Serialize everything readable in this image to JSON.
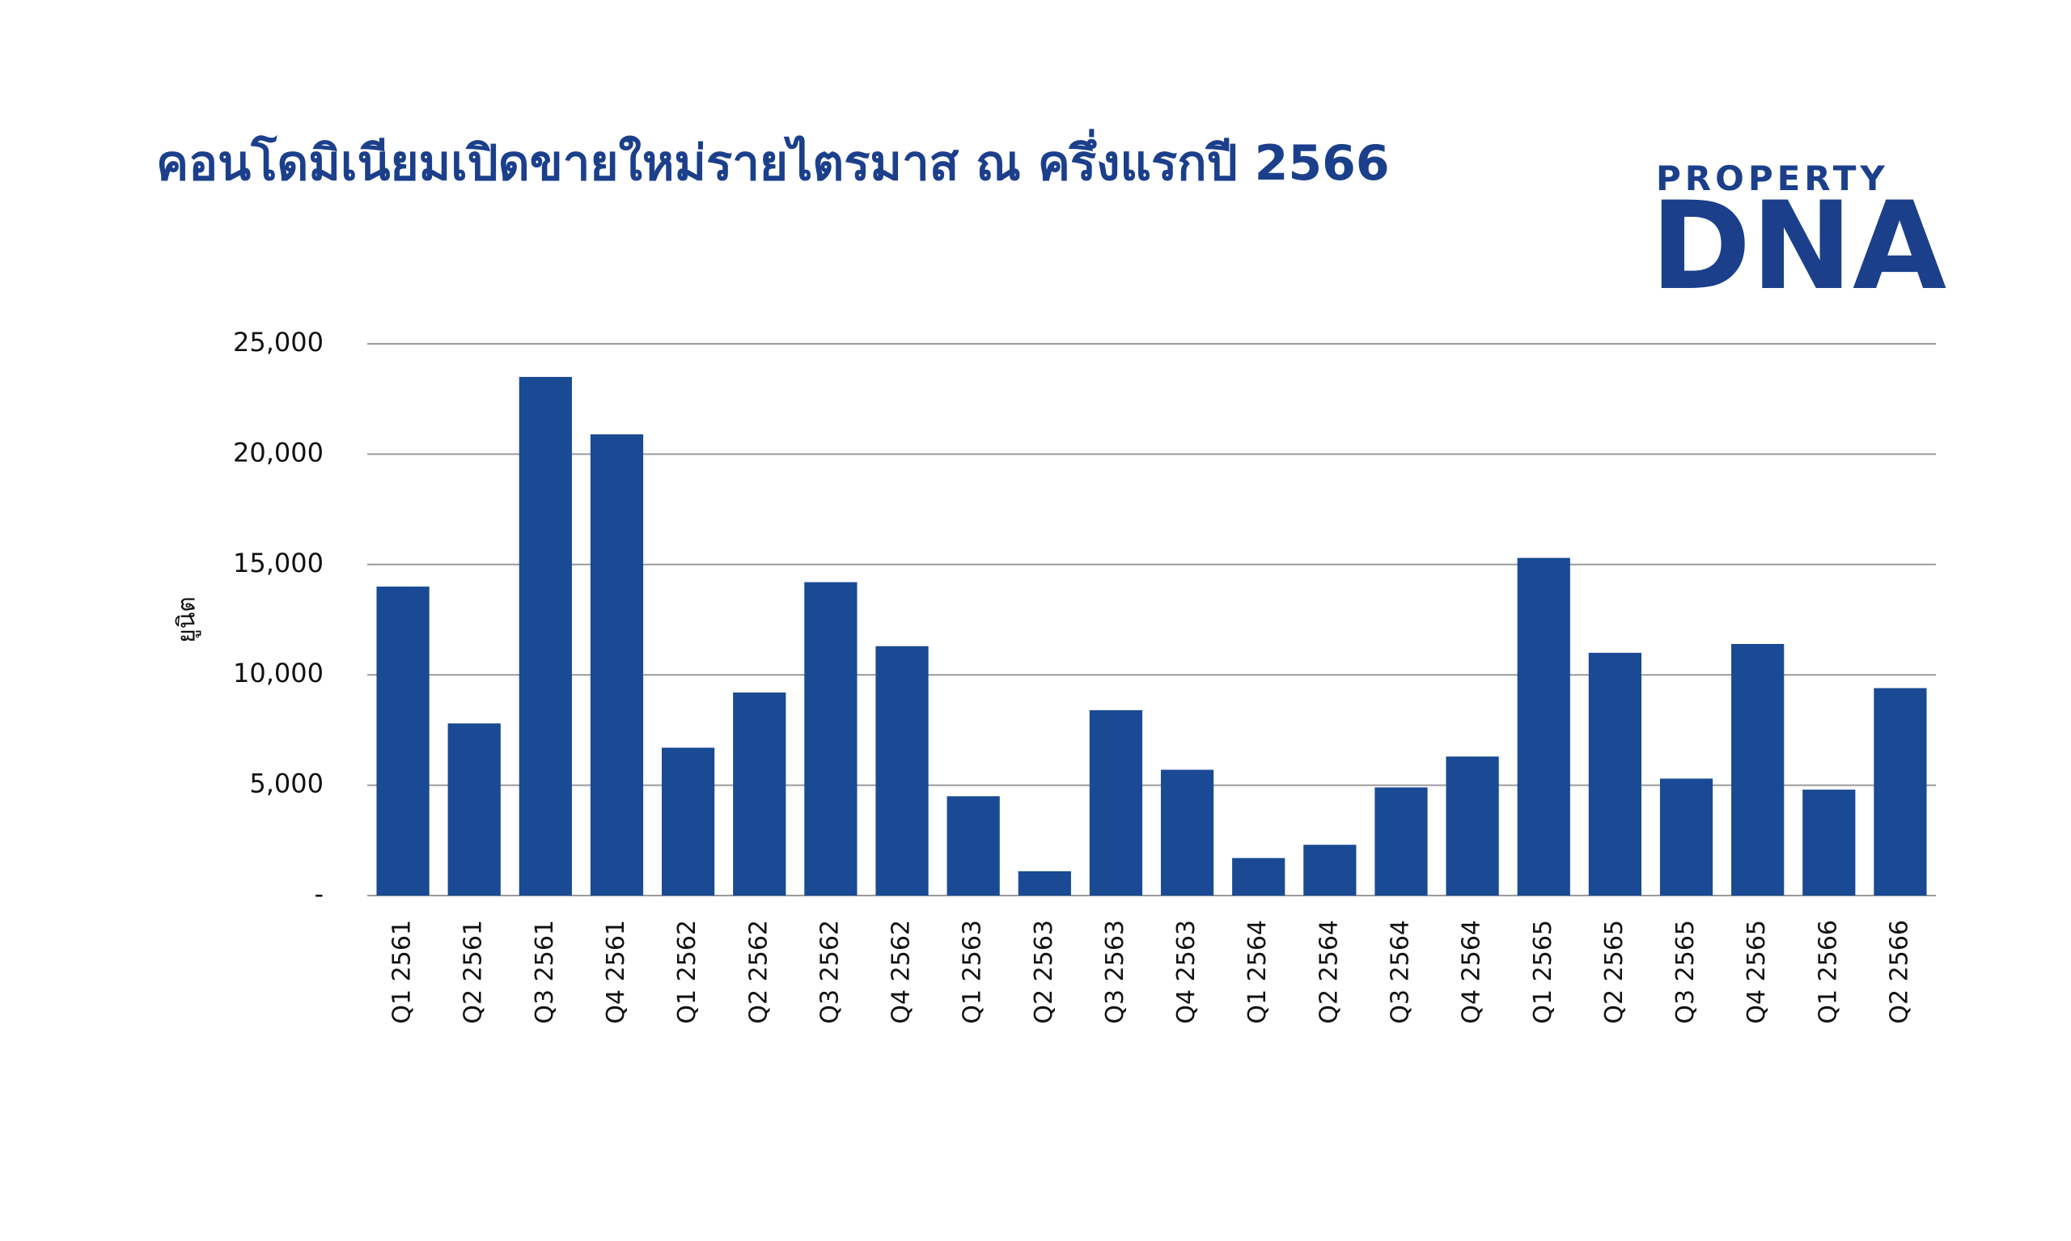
{
  "chart_data": {
    "type": "bar",
    "title": "คอนโดมิเนียมเปิดขายใหม่รายไตรมาส ณ ครึ่งแรกปี 2566",
    "y_label": "ยูนิต",
    "logo": {
      "top": "PROPERTY",
      "bottom": "DNA"
    },
    "categories": [
      "Q1 2561",
      "Q2 2561",
      "Q3 2561",
      "Q4 2561",
      "Q1 2562",
      "Q2 2562",
      "Q3 2562",
      "Q4 2562",
      "Q1 2563",
      "Q2 2563",
      "Q3 2563",
      "Q4 2563",
      "Q1 2564",
      "Q2 2564",
      "Q3 2564",
      "Q4 2564",
      "Q1 2565",
      "Q2 2565",
      "Q3 2565",
      "Q4 2565",
      "Q1 2566",
      "Q2 2566"
    ],
    "values": [
      14000,
      7800,
      23500,
      20900,
      6700,
      9200,
      14200,
      11300,
      4500,
      1100,
      8400,
      5700,
      1700,
      2300,
      4900,
      6300,
      15300,
      11000,
      5300,
      11400,
      4800,
      9400
    ],
    "color": "#1a4a94",
    "ylim": [
      0,
      25000
    ],
    "yticks": [
      {
        "value": 0,
        "label": "-"
      },
      {
        "value": 5000,
        "label": "5,000"
      },
      {
        "value": 10000,
        "label": "10,000"
      },
      {
        "value": 15000,
        "label": "15,000"
      },
      {
        "value": 20000,
        "label": "20,000"
      },
      {
        "value": 25000,
        "label": "25,000"
      }
    ],
    "grid": true
  }
}
